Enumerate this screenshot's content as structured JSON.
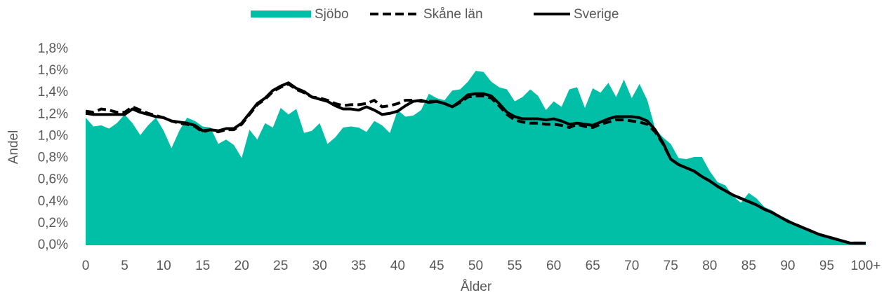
{
  "chart_data": {
    "type": "area",
    "xlabel": "Ålder",
    "ylabel": "Andel",
    "categories": [
      "0",
      null,
      null,
      null,
      null,
      "5",
      null,
      null,
      null,
      null,
      "10",
      null,
      null,
      null,
      null,
      "15",
      null,
      null,
      null,
      null,
      "20",
      null,
      null,
      null,
      null,
      "25",
      null,
      null,
      null,
      null,
      "30",
      null,
      null,
      null,
      null,
      "35",
      null,
      null,
      null,
      null,
      "40",
      null,
      null,
      null,
      null,
      "45",
      null,
      null,
      null,
      null,
      "50",
      null,
      null,
      null,
      null,
      "55",
      null,
      null,
      null,
      null,
      "60",
      null,
      null,
      null,
      null,
      "65",
      null,
      null,
      null,
      null,
      "70",
      null,
      null,
      null,
      null,
      "75",
      null,
      null,
      null,
      null,
      "80",
      null,
      null,
      null,
      null,
      "85",
      null,
      null,
      null,
      null,
      "90",
      null,
      null,
      null,
      null,
      "95",
      null,
      null,
      null,
      null,
      "100+"
    ],
    "series": [
      {
        "name": "Sjöbo",
        "type": "area",
        "color": "#00bfa6",
        "values": [
          1.17,
          1.09,
          1.1,
          1.07,
          1.12,
          1.2,
          1.12,
          1.01,
          1.1,
          1.17,
          1.05,
          0.89,
          1.05,
          1.17,
          1.14,
          1.09,
          1.08,
          0.93,
          0.97,
          0.92,
          0.8,
          1.06,
          0.97,
          1.12,
          1.08,
          1.26,
          1.2,
          1.25,
          1.03,
          1.05,
          1.12,
          0.93,
          0.99,
          1.08,
          1.09,
          1.08,
          1.04,
          1.14,
          1.1,
          1.03,
          1.24,
          1.18,
          1.19,
          1.24,
          1.39,
          1.35,
          1.33,
          1.42,
          1.43,
          1.5,
          1.6,
          1.59,
          1.5,
          1.45,
          1.43,
          1.32,
          1.36,
          1.43,
          1.37,
          1.24,
          1.32,
          1.27,
          1.43,
          1.45,
          1.26,
          1.44,
          1.4,
          1.49,
          1.36,
          1.52,
          1.35,
          1.48,
          1.33,
          1.07,
          0.99,
          0.93,
          0.8,
          0.79,
          0.81,
          0.81,
          0.68,
          0.58,
          0.55,
          0.45,
          0.39,
          0.48,
          0.43,
          0.35,
          0.32,
          0.27,
          0.24,
          0.2,
          0.16,
          0.13,
          0.1,
          0.08,
          0.07,
          0.05,
          0.03,
          0.02,
          0.03
        ]
      },
      {
        "name": "Skåne län",
        "type": "line",
        "dashed": true,
        "color": "#000000",
        "values": [
          1.23,
          1.22,
          1.25,
          1.24,
          1.22,
          1.22,
          1.27,
          1.24,
          1.21,
          1.19,
          1.17,
          1.14,
          1.12,
          1.11,
          1.09,
          1.04,
          1.06,
          1.04,
          1.06,
          1.06,
          1.11,
          1.2,
          1.29,
          1.34,
          1.41,
          1.45,
          1.48,
          1.43,
          1.4,
          1.36,
          1.35,
          1.33,
          1.3,
          1.28,
          1.29,
          1.29,
          1.3,
          1.33,
          1.27,
          1.28,
          1.3,
          1.33,
          1.33,
          1.32,
          1.32,
          1.32,
          1.3,
          1.27,
          1.31,
          1.36,
          1.37,
          1.37,
          1.35,
          1.28,
          1.2,
          1.15,
          1.13,
          1.12,
          1.12,
          1.11,
          1.11,
          1.1,
          1.08,
          1.11,
          1.09,
          1.08,
          1.11,
          1.13,
          1.15,
          1.15,
          1.14,
          1.13,
          1.11,
          1.04,
          0.93,
          0.79,
          0.74,
          0.71,
          0.68,
          0.63,
          0.59,
          0.54,
          0.5,
          0.46,
          0.43,
          0.4,
          0.37,
          0.33,
          0.3,
          0.26,
          0.22,
          0.19,
          0.16,
          0.13,
          0.1,
          0.08,
          0.06,
          0.04,
          0.02,
          0.02,
          0.02
        ]
      },
      {
        "name": "Sverige",
        "type": "line",
        "dashed": false,
        "color": "#000000",
        "values": [
          1.21,
          1.2,
          1.2,
          1.2,
          1.2,
          1.2,
          1.25,
          1.22,
          1.2,
          1.18,
          1.17,
          1.14,
          1.13,
          1.12,
          1.1,
          1.05,
          1.06,
          1.05,
          1.07,
          1.07,
          1.12,
          1.21,
          1.3,
          1.35,
          1.42,
          1.46,
          1.49,
          1.44,
          1.41,
          1.36,
          1.34,
          1.32,
          1.28,
          1.25,
          1.25,
          1.24,
          1.27,
          1.24,
          1.2,
          1.21,
          1.23,
          1.28,
          1.32,
          1.33,
          1.31,
          1.32,
          1.3,
          1.27,
          1.32,
          1.38,
          1.39,
          1.39,
          1.37,
          1.3,
          1.22,
          1.18,
          1.16,
          1.16,
          1.16,
          1.15,
          1.16,
          1.14,
          1.11,
          1.12,
          1.11,
          1.1,
          1.13,
          1.16,
          1.18,
          1.18,
          1.18,
          1.17,
          1.14,
          1.06,
          0.94,
          0.79,
          0.74,
          0.71,
          0.68,
          0.63,
          0.59,
          0.54,
          0.5,
          0.46,
          0.43,
          0.4,
          0.37,
          0.33,
          0.3,
          0.26,
          0.22,
          0.19,
          0.16,
          0.13,
          0.1,
          0.08,
          0.06,
          0.04,
          0.02,
          0.02,
          0.02
        ]
      }
    ],
    "ylim": [
      0,
      1.8
    ],
    "yticks": [
      {
        "value": 0,
        "label": "0,0%"
      },
      {
        "value": 0.2,
        "label": "0,2%"
      },
      {
        "value": 0.4,
        "label": "0,4%"
      },
      {
        "value": 0.6,
        "label": "0,6%"
      },
      {
        "value": 0.8,
        "label": "0,8%"
      },
      {
        "value": 1.0,
        "label": "1,0%"
      },
      {
        "value": 1.2,
        "label": "1,2%"
      },
      {
        "value": 1.4,
        "label": "1,4%"
      },
      {
        "value": 1.6,
        "label": "1,6%"
      },
      {
        "value": 1.8,
        "label": "1,8%"
      }
    ],
    "grid": false,
    "legend": "top"
  }
}
